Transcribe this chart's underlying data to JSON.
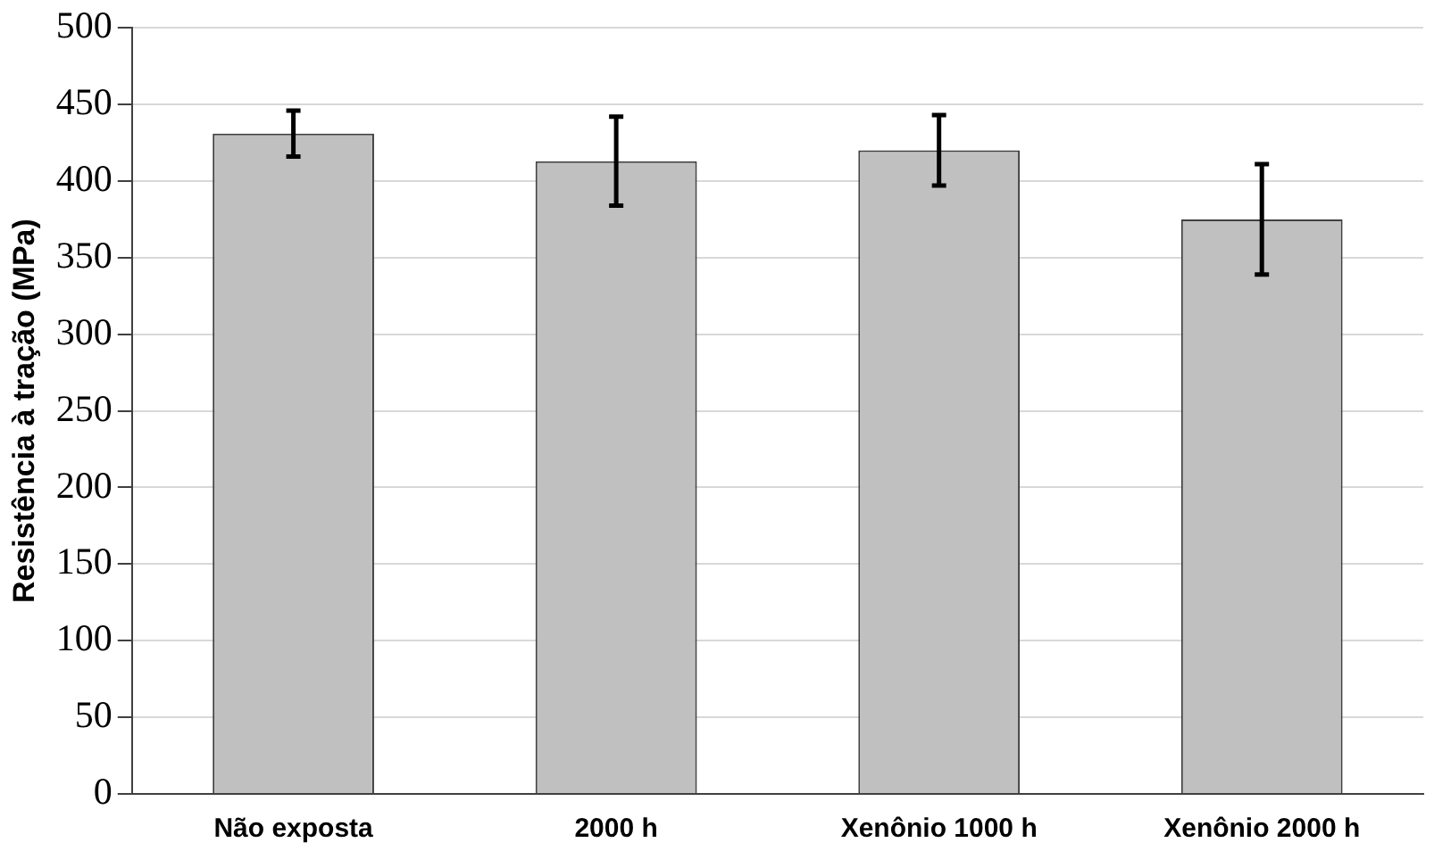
{
  "chart_data": {
    "type": "bar",
    "ylabel": "Resistência à tração (MPa)",
    "categories": [
      "Não exposta",
      "2000 h",
      "Xenônio 1000 h",
      "Xenônio 2000 h"
    ],
    "values": [
      431,
      413,
      420,
      375
    ],
    "errors": [
      15,
      29,
      23,
      36
    ],
    "color": "#c0c0c0",
    "ylim": [
      0,
      500
    ],
    "yticks": [
      0,
      50,
      100,
      150,
      200,
      250,
      300,
      350,
      400,
      450,
      500
    ],
    "grid": "y",
    "legend": false
  }
}
